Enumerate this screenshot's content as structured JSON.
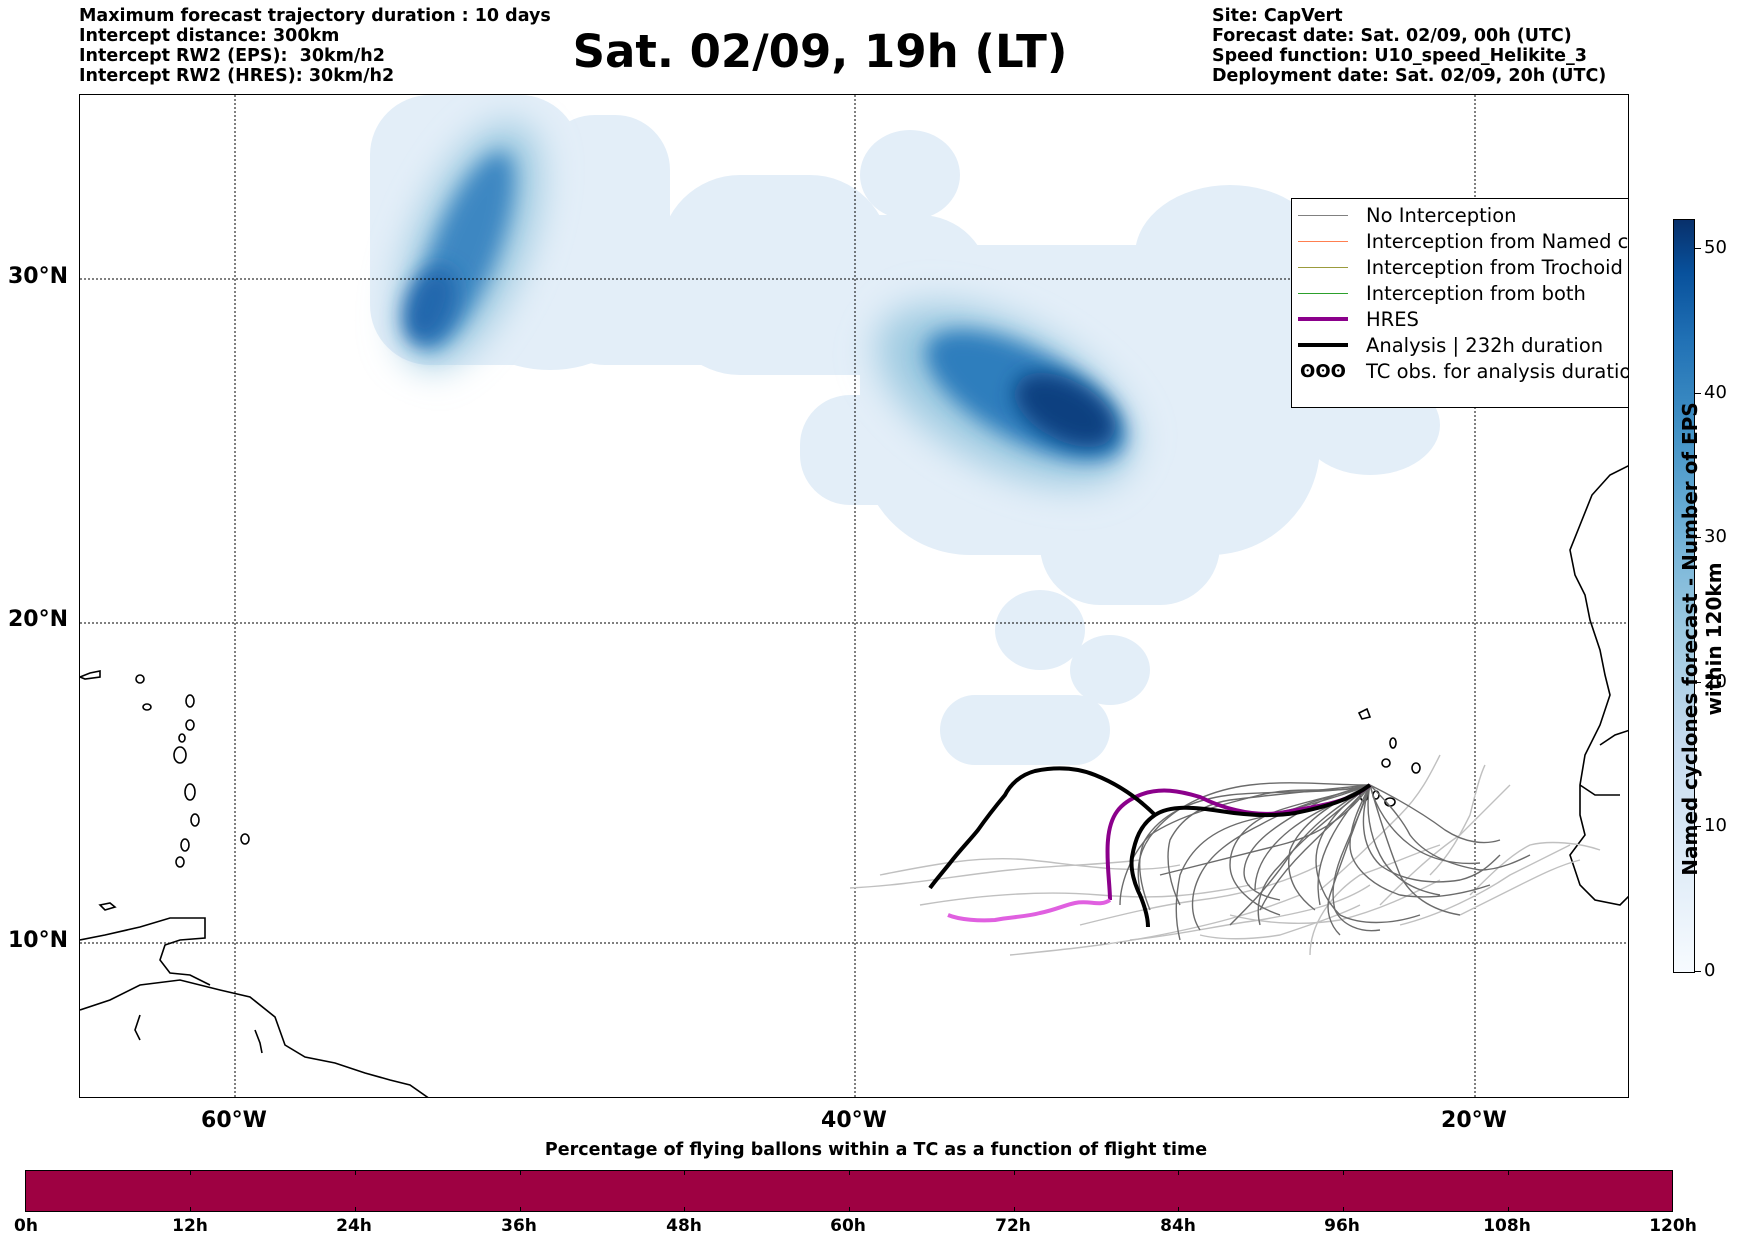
{
  "header": {
    "left": [
      "Maximum forecast trajectory duration : 10 days",
      "Intercept distance: 300km",
      "Intercept RW2 (EPS):  30km/h2",
      "Intercept RW2 (HRES): 30km/h2"
    ],
    "title": "Sat. 02/09, 19h (LT)",
    "right": [
      "Site: CapVert",
      "Forecast date: Sat. 02/09, 00h (UTC)",
      "Speed function: U10_speed_Helikite_3",
      "Deployment date: Sat. 02/09, 20h (UTC)"
    ]
  },
  "map": {
    "lat_labels": [
      "30°N",
      "20°N",
      "10°N"
    ],
    "lon_labels": [
      "60°W",
      "40°W",
      "20°W"
    ],
    "colors": {
      "ensemble_strong": "#666666",
      "ensemble_light": "#c0c0c0",
      "hres": "#8b008b",
      "hres_tail": "#e060e0",
      "analysis": "#000000",
      "coast": "#000000"
    }
  },
  "legend": {
    "items": [
      {
        "label": "No Interception",
        "color": "#808080"
      },
      {
        "label": "Interception from Named cyclone",
        "color": "#ff7f50"
      },
      {
        "label": "Interception from Trochoid",
        "color": "#9b9b3c"
      },
      {
        "label": "Interception from both",
        "color": "#2ca02c"
      },
      {
        "label": "HRES",
        "color": "#8b008b"
      },
      {
        "label": "Analysis | 232h duration",
        "color": "#000000"
      }
    ],
    "tc_symbol": "ʘʘʘ",
    "tc_label": "TC obs. for analysis duration"
  },
  "colorbar": {
    "title": "Named cyclones forecast - Number of EPS within 120km",
    "ticks": [
      "0",
      "10",
      "20",
      "30",
      "40",
      "50"
    ],
    "max": 52
  },
  "percentage_bar": {
    "title": "Percentage of flying ballons within a TC as a function of flight time",
    "color": "#9e0142",
    "ticks": [
      "0h",
      "12h",
      "24h",
      "36h",
      "48h",
      "60h",
      "72h",
      "84h",
      "96h",
      "108h",
      "120h"
    ]
  }
}
